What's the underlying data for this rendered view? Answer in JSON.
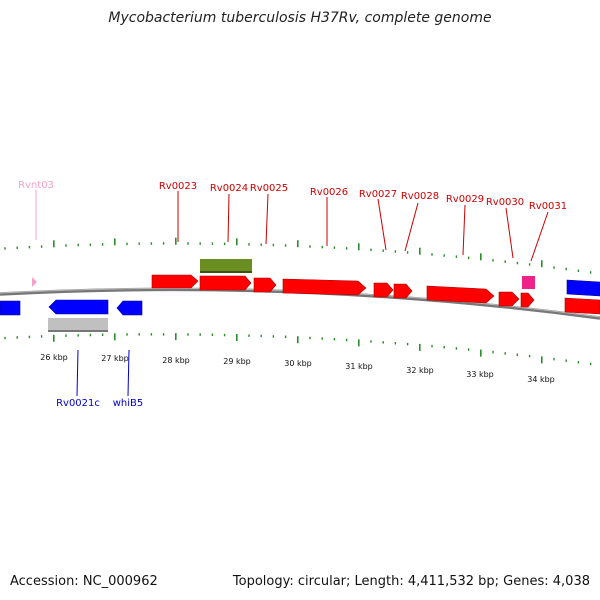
{
  "title": "Mycobacterium tuberculosis H37Rv, complete genome",
  "accession": "Accession: NC_000962",
  "summary": "Topology: circular; Length: 4,411,532 bp; Genes: 4,038",
  "colors": {
    "forward_gene": "#ff0000",
    "reverse_gene": "#0000ff",
    "rna_label": "#f4a0c8",
    "forward_label": "#cc0000",
    "reverse_label": "#0000cc",
    "repeat_feature": "#6b8e23",
    "misc_feature": "#ee2288",
    "pseudo_feature": "#c0c0c0",
    "ticks": "#2e8b2e",
    "backbone": "#888888"
  },
  "scale_ticks": [
    "26 kbp",
    "27 kbp",
    "28 kbp",
    "29 kbp",
    "30 kbp",
    "31 kbp",
    "32 kbp",
    "33 kbp",
    "34 kbp"
  ],
  "gene_labels": [
    {
      "text": "Rvnt03",
      "strand": "rna"
    },
    {
      "text": "Rv0023",
      "strand": "forward"
    },
    {
      "text": "Rv0024",
      "strand": "forward"
    },
    {
      "text": "Rv0025",
      "strand": "forward"
    },
    {
      "text": "Rv0026",
      "strand": "forward"
    },
    {
      "text": "Rv0027",
      "strand": "forward"
    },
    {
      "text": "Rv0028",
      "strand": "forward"
    },
    {
      "text": "Rv0029",
      "strand": "forward"
    },
    {
      "text": "Rv0030",
      "strand": "forward"
    },
    {
      "text": "Rv0031",
      "strand": "forward"
    },
    {
      "text": "Rv0021c",
      "strand": "reverse"
    },
    {
      "text": "whiB5",
      "strand": "reverse"
    }
  ]
}
